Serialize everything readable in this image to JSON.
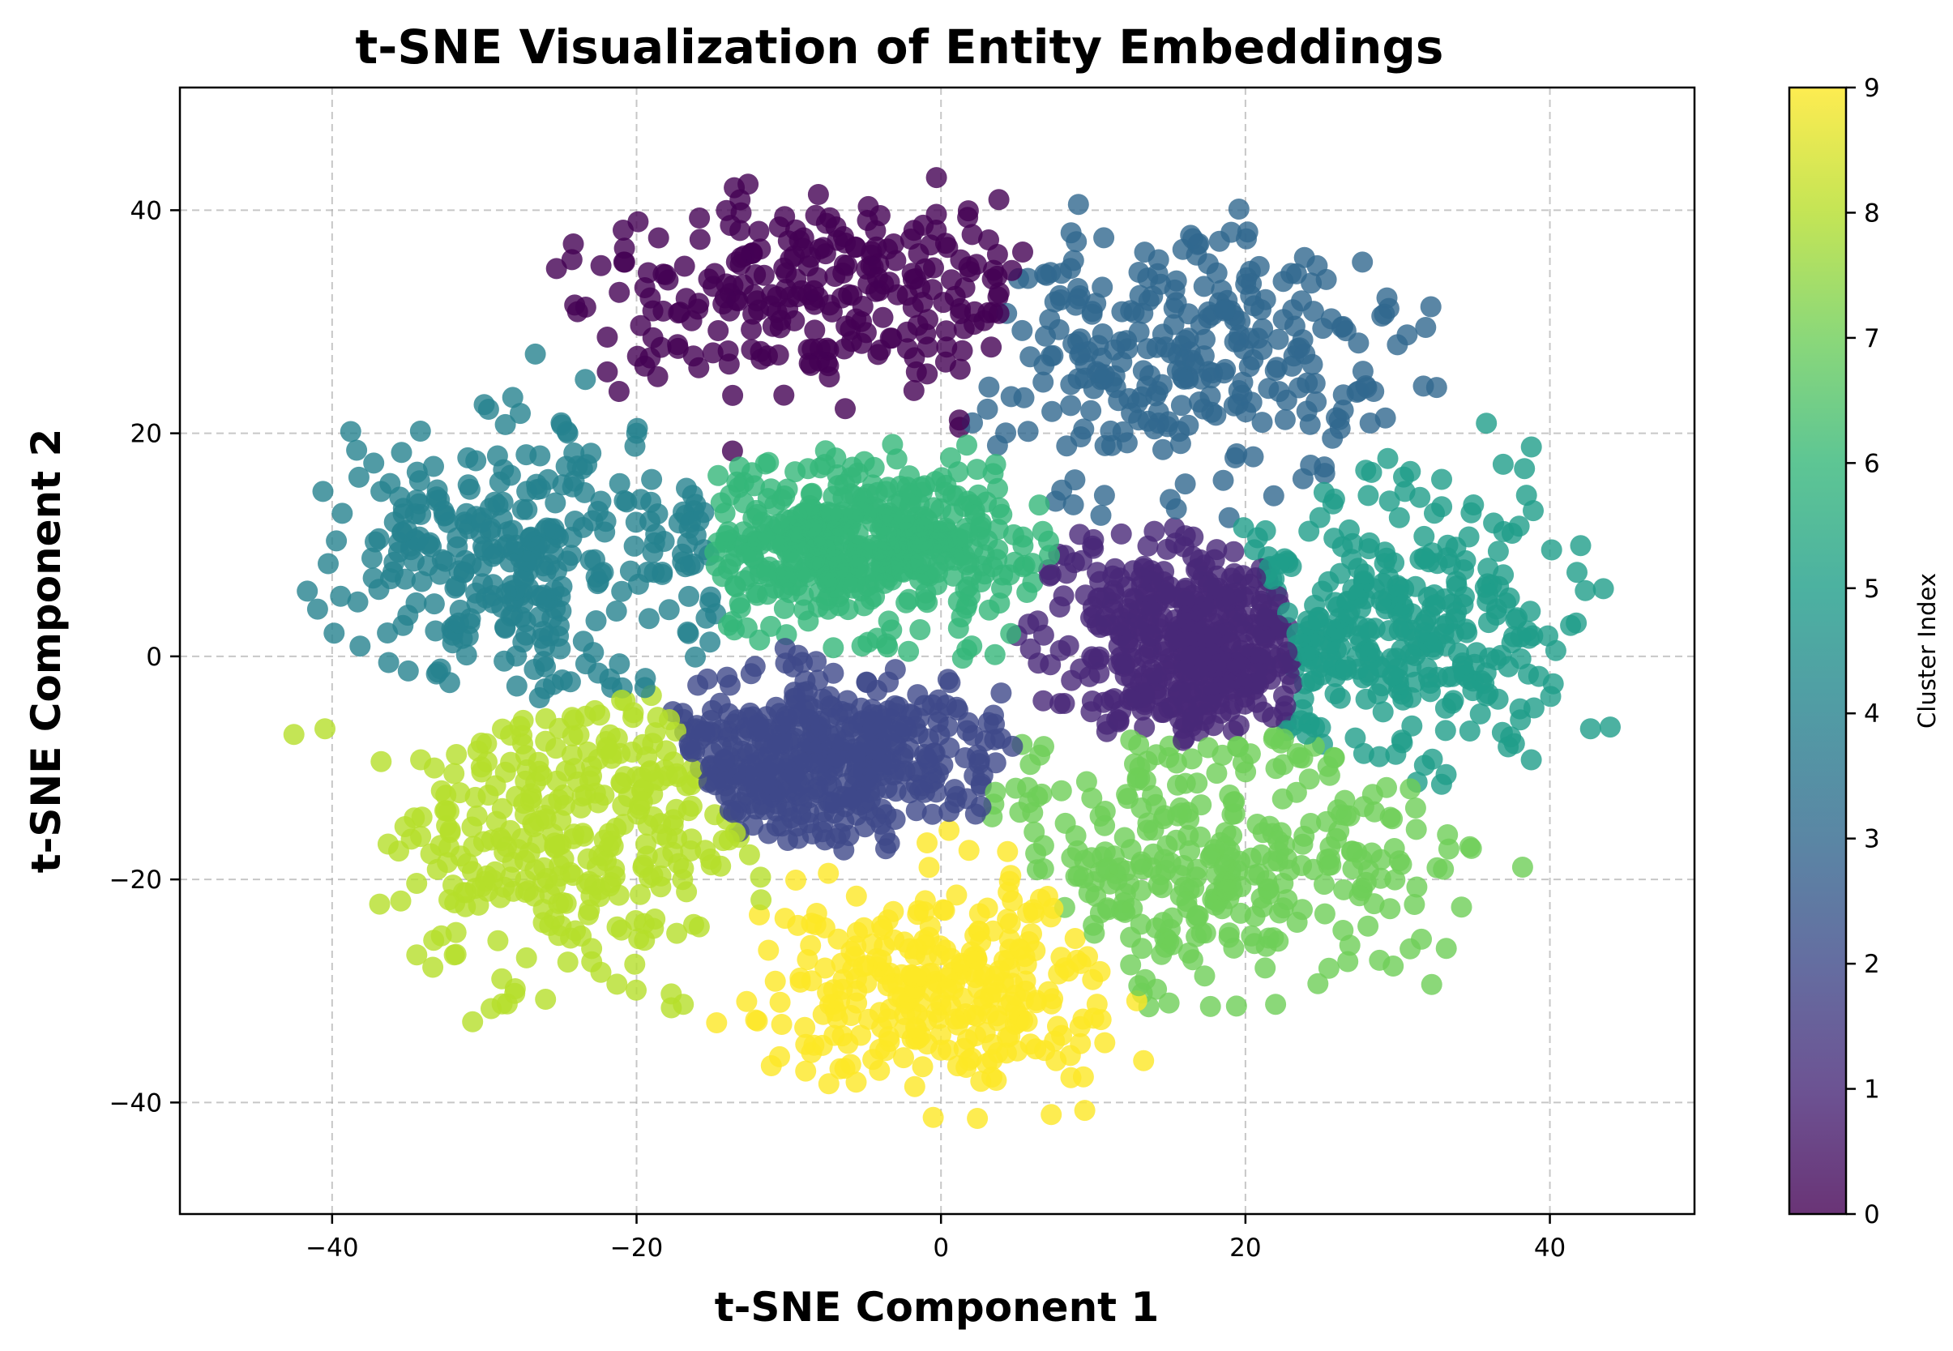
{
  "chart_data": {
    "type": "scatter",
    "title": "t-SNE Visualization of Entity Embeddings",
    "xlabel": "t-SNE Component 1",
    "ylabel": "t-SNE Component 2",
    "xlim": [
      -50,
      49.5
    ],
    "ylim": [
      -50,
      51
    ],
    "xticks": [
      -40,
      -20,
      0,
      20,
      40
    ],
    "yticks": [
      -40,
      -20,
      0,
      20,
      40
    ],
    "xtick_labels": [
      "−40",
      "−20",
      "0",
      "20",
      "40"
    ],
    "ytick_labels": [
      "−40",
      "−20",
      "0",
      "20",
      "40"
    ],
    "grid": true,
    "point_alpha": 0.8,
    "colormap": "viridis",
    "colorbar": {
      "label": "Cluster Index",
      "min": 0,
      "max": 9,
      "ticks": [
        0,
        1,
        2,
        3,
        4,
        5,
        6,
        7,
        8,
        9
      ],
      "tick_labels": [
        "0",
        "1",
        "2",
        "3",
        "4",
        "5",
        "6",
        "7",
        "8",
        "9"
      ]
    },
    "clusters": [
      {
        "index": 0,
        "color": "#440154",
        "center": [
          -8,
          33
        ],
        "spread": [
          13,
          7.5
        ],
        "count": 260
      },
      {
        "index": 1,
        "color": "#482878",
        "center": [
          17,
          1
        ],
        "spread": [
          8,
          8
        ],
        "count": 500
      },
      {
        "index": 2,
        "color": "#3e4989",
        "center": [
          -8,
          -9
        ],
        "spread": [
          10,
          6
        ],
        "count": 500
      },
      {
        "index": 3,
        "color": "#31688e",
        "center": [
          16,
          27
        ],
        "spread": [
          12,
          9
        ],
        "count": 280
      },
      {
        "index": 4,
        "color": "#26828e",
        "center": [
          -29,
          9
        ],
        "spread": [
          9,
          10
        ],
        "count": 300
      },
      {
        "index": 5,
        "color": "#1f9e89",
        "center": [
          31,
          3
        ],
        "spread": [
          9,
          11
        ],
        "count": 300
      },
      {
        "index": 6,
        "color": "#35b779",
        "center": [
          -5,
          10
        ],
        "spread": [
          10,
          6
        ],
        "count": 520
      },
      {
        "index": 7,
        "color": "#6ece58",
        "center": [
          18,
          -19
        ],
        "spread": [
          11,
          9
        ],
        "count": 300
      },
      {
        "index": 8,
        "color": "#b5de2b",
        "center": [
          -25,
          -17
        ],
        "spread": [
          9,
          10
        ],
        "count": 300
      },
      {
        "index": 9,
        "color": "#fde725",
        "center": [
          0,
          -30
        ],
        "spread": [
          10,
          7
        ],
        "count": 300
      }
    ]
  }
}
